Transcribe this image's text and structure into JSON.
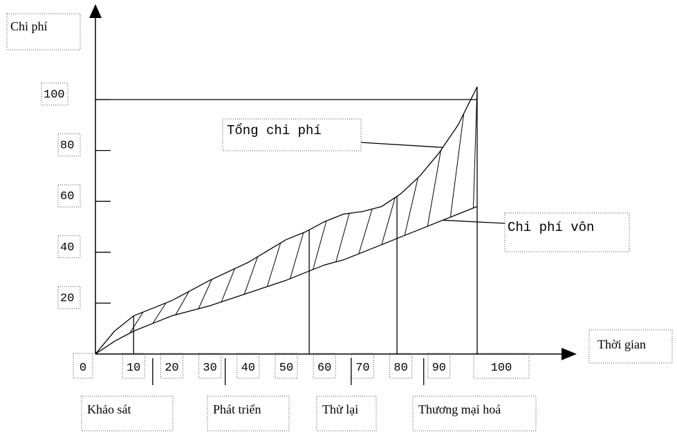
{
  "chart_data": {
    "type": "area",
    "ylabel": "Chi phí",
    "xlabel": "Thời gian",
    "xlim": [
      0,
      100
    ],
    "ylim": [
      0,
      100
    ],
    "y_ticks": [
      20,
      40,
      60,
      80,
      100
    ],
    "x_ticks": [
      0,
      10,
      20,
      30,
      40,
      50,
      60,
      70,
      80,
      90,
      100
    ],
    "series": [
      {
        "name": "Tổng chi phí",
        "x": [
          0,
          5,
          10,
          15,
          20,
          30,
          40,
          50,
          55,
          60,
          65,
          70,
          75,
          80,
          85,
          90,
          95,
          100
        ],
        "y": [
          0,
          9,
          15,
          18,
          21,
          29,
          36,
          45,
          48,
          52,
          55,
          56,
          58,
          63,
          70,
          79,
          90,
          105
        ]
      },
      {
        "name": "Chi phí vôn",
        "x": [
          0,
          5,
          10,
          15,
          20,
          30,
          40,
          50,
          55,
          60,
          65,
          70,
          75,
          80,
          85,
          90,
          95,
          100
        ],
        "y": [
          0,
          5,
          9,
          12,
          15,
          19,
          24,
          29,
          32,
          35,
          37,
          40,
          43,
          46,
          49,
          52,
          55,
          58
        ]
      }
    ],
    "reference_line": {
      "y": 100
    },
    "shaded_region": "between Tổng chi phí and Chi phí vôn",
    "phase_boundaries": [
      10,
      56,
      79,
      100
    ],
    "phases": [
      {
        "label": "Khảo sát",
        "from": 0,
        "to": 10
      },
      {
        "label": "Phát triển",
        "from": 10,
        "to": 56
      },
      {
        "label": "Thử lại",
        "from": 56,
        "to": 79
      },
      {
        "label": "Thương mại hoá",
        "from": 79,
        "to": 100
      }
    ]
  }
}
